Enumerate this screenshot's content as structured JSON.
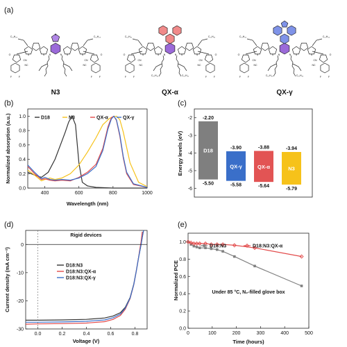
{
  "panels": {
    "a": "(a)",
    "b": "(b)",
    "c": "(c)",
    "d": "(d)",
    "e": "(e)"
  },
  "molecules": [
    {
      "name": "N3",
      "core_color": "#9b6ad9",
      "ring_color": "#b086e6"
    },
    {
      "name": "QX-α",
      "core_color": "#9b6ad9",
      "ring_color": "#f08a8a"
    },
    {
      "name": "QX-γ",
      "core_color": "#9b6ad9",
      "ring_color": "#7f93e8"
    }
  ],
  "molecule_text": {
    "cn": "CN",
    "nc": "NC",
    "f": "F",
    "o": "O",
    "s": "S",
    "n": "N",
    "c11": "C₁₁H₂₃",
    "c17": "C₁₇H₃₅",
    "c15": "C₁₅H₃₁",
    "c10": "C₁₀H₂₁"
  },
  "chart_data": [
    {
      "id": "b",
      "type": "line",
      "xlabel": "Wavelength (nm)",
      "ylabel": "Normalized absorption (a.u.)",
      "xlim": [
        300,
        1000
      ],
      "ylim": [
        0,
        1.1
      ],
      "xticks": [
        400,
        600,
        800,
        1000
      ],
      "yticks": [
        0.0,
        0.2,
        0.4,
        0.6,
        0.8,
        1.0
      ],
      "legend_position": "top",
      "series": [
        {
          "name": "D18",
          "color": "#333333",
          "x": [
            300,
            340,
            380,
            420,
            460,
            500,
            520,
            540,
            560,
            580,
            600,
            620,
            650,
            700,
            800,
            900,
            1000
          ],
          "y": [
            0.22,
            0.18,
            0.15,
            0.22,
            0.4,
            0.65,
            0.78,
            0.92,
            1.0,
            0.88,
            0.35,
            0.08,
            0.03,
            0.01,
            0.0,
            0.0,
            0.0
          ]
        },
        {
          "name": "N3",
          "color": "#f6c21a",
          "x": [
            300,
            340,
            380,
            400,
            430,
            460,
            500,
            550,
            600,
            650,
            700,
            740,
            780,
            800,
            820,
            840,
            860,
            900,
            950,
            1000
          ],
          "y": [
            0.25,
            0.18,
            0.1,
            0.12,
            0.14,
            0.12,
            0.14,
            0.2,
            0.32,
            0.5,
            0.7,
            0.88,
            0.97,
            0.99,
            1.0,
            0.95,
            0.78,
            0.35,
            0.08,
            0.02
          ]
        },
        {
          "name": "QX-α",
          "color": "#e24a4a",
          "x": [
            300,
            340,
            380,
            400,
            430,
            460,
            500,
            550,
            600,
            650,
            700,
            740,
            770,
            790,
            805,
            820,
            840,
            860,
            880,
            920,
            1000
          ],
          "y": [
            0.3,
            0.2,
            0.12,
            0.13,
            0.11,
            0.1,
            0.11,
            0.1,
            0.15,
            0.22,
            0.33,
            0.55,
            0.85,
            0.98,
            1.0,
            0.94,
            0.72,
            0.42,
            0.2,
            0.05,
            0.01
          ]
        },
        {
          "name": "QX-γ",
          "color": "#3a6fc9",
          "x": [
            300,
            340,
            380,
            400,
            430,
            460,
            500,
            550,
            600,
            650,
            700,
            740,
            770,
            790,
            805,
            820,
            840,
            860,
            880,
            920,
            1000
          ],
          "y": [
            0.32,
            0.22,
            0.13,
            0.15,
            0.12,
            0.11,
            0.12,
            0.11,
            0.14,
            0.2,
            0.3,
            0.52,
            0.82,
            0.96,
            1.0,
            0.95,
            0.74,
            0.44,
            0.22,
            0.06,
            0.01
          ]
        }
      ]
    },
    {
      "id": "c",
      "type": "bar",
      "ylabel": "Energy levels (eV)",
      "ylim": [
        -6.5,
        -1.5
      ],
      "yticks": [
        -6,
        -5,
        -4,
        -3,
        -2
      ],
      "categories": [
        "D18",
        "QX-γ",
        "QX-α",
        "N3"
      ],
      "series": [
        {
          "name": "LUMO",
          "values": [
            -2.2,
            -3.9,
            -3.88,
            -3.94
          ]
        },
        {
          "name": "HOMO",
          "values": [
            -5.5,
            -5.58,
            -5.64,
            -5.79
          ]
        }
      ],
      "top_labels": [
        "-2.20",
        "-3.90",
        "-3.88",
        "-3.94"
      ],
      "bottom_labels": [
        "-5.50",
        "-5.58",
        "-5.64",
        "-5.79"
      ],
      "colors": [
        "#7f7f7f",
        "#3a6fc9",
        "#e25454",
        "#f6c21a"
      ]
    },
    {
      "id": "d",
      "type": "line",
      "title": "Rigid devices",
      "xlabel": "Voltage (V)",
      "ylabel": "Current density (mA cm⁻²)",
      "xlim": [
        -0.1,
        0.9
      ],
      "ylim": [
        -30,
        5
      ],
      "xticks": [
        0.0,
        0.2,
        0.4,
        0.6,
        0.8
      ],
      "yticks": [
        -30,
        -20,
        -10,
        0
      ],
      "legend_position": "center-right",
      "series": [
        {
          "name": "D18:N3",
          "color": "#333333",
          "x": [
            -0.1,
            0.0,
            0.2,
            0.4,
            0.55,
            0.62,
            0.68,
            0.72,
            0.76,
            0.79,
            0.81,
            0.83,
            0.85,
            0.86,
            0.87
          ],
          "y": [
            -26.9,
            -26.9,
            -26.8,
            -26.6,
            -26.1,
            -25.4,
            -24.2,
            -22.3,
            -18.8,
            -14.0,
            -9.5,
            -4.5,
            0.0,
            2.5,
            5.0
          ]
        },
        {
          "name": "D18:N3:QX-α",
          "color": "#e24a4a",
          "x": [
            -0.1,
            0.0,
            0.2,
            0.4,
            0.55,
            0.62,
            0.68,
            0.72,
            0.76,
            0.79,
            0.81,
            0.83,
            0.84,
            0.85,
            0.86
          ],
          "y": [
            -28.3,
            -28.2,
            -28.1,
            -27.9,
            -27.4,
            -26.6,
            -25.2,
            -23.0,
            -19.2,
            -14.3,
            -9.6,
            -4.4,
            -1.6,
            1.0,
            4.5
          ]
        },
        {
          "name": "D18:N3:QX-γ",
          "color": "#3a6fc9",
          "x": [
            -0.1,
            0.0,
            0.2,
            0.4,
            0.55,
            0.62,
            0.68,
            0.72,
            0.76,
            0.79,
            0.81,
            0.83,
            0.85,
            0.86,
            0.87
          ],
          "y": [
            -27.6,
            -27.6,
            -27.5,
            -27.3,
            -26.8,
            -26.0,
            -24.7,
            -22.6,
            -19.0,
            -14.2,
            -9.6,
            -4.5,
            0.0,
            2.6,
            5.0
          ]
        }
      ]
    },
    {
      "id": "e",
      "type": "line",
      "xlabel": "Time (hours)",
      "ylabel": "Normalized PCE",
      "xlim": [
        0,
        500
      ],
      "ylim": [
        0.0,
        1.1
      ],
      "xticks": [
        0,
        100,
        200,
        300,
        400,
        500
      ],
      "yticks": [
        0.0,
        0.2,
        0.4,
        0.6,
        0.8,
        1.0
      ],
      "annotation": "Under 85 °C, N₂-filled glove box",
      "legend_position": "top",
      "series": [
        {
          "name": "D18:N3",
          "color": "#808080",
          "marker": "square",
          "x": [
            0,
            12,
            24,
            36,
            48,
            72,
            96,
            120,
            144,
            192,
            276,
            470
          ],
          "y": [
            1.0,
            0.97,
            0.95,
            0.94,
            0.93,
            0.93,
            0.92,
            0.91,
            0.89,
            0.83,
            0.72,
            0.49
          ]
        },
        {
          "name": "D18:N3:QX-α",
          "color": "#e24a4a",
          "marker": "diamond",
          "x": [
            0,
            12,
            24,
            36,
            48,
            72,
            96,
            120,
            144,
            192,
            276,
            470
          ],
          "y": [
            1.0,
            0.99,
            0.98,
            0.98,
            0.98,
            0.98,
            0.97,
            0.97,
            0.97,
            0.96,
            0.93,
            0.83
          ]
        }
      ]
    }
  ]
}
